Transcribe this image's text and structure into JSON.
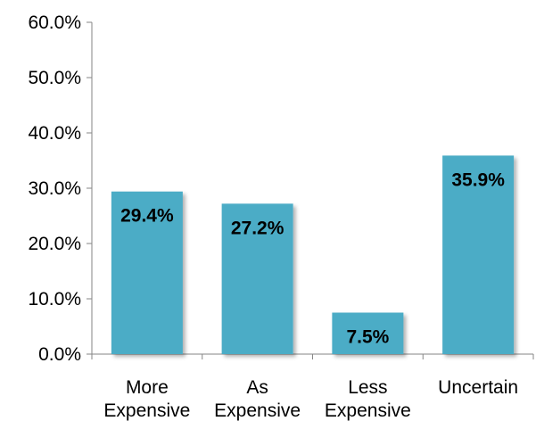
{
  "chart_data": {
    "type": "bar",
    "categories": [
      "More Expensive",
      "As Expensive",
      "Less Expensive",
      "Uncertain"
    ],
    "category_label_lines": [
      [
        "More",
        "Expensive"
      ],
      [
        "As",
        "Expensive"
      ],
      [
        "Less",
        "Expensive"
      ],
      [
        "Uncertain"
      ]
    ],
    "values": [
      29.4,
      27.2,
      7.5,
      35.9
    ],
    "data_labels": [
      "29.4%",
      "27.2%",
      "7.5%",
      "35.9%"
    ],
    "ylim": [
      0,
      60
    ],
    "y_ticks": [
      0,
      10,
      20,
      30,
      40,
      50,
      60
    ],
    "y_tick_labels": [
      "0.0%",
      "10.0%",
      "20.0%",
      "30.0%",
      "40.0%",
      "50.0%",
      "60.0%"
    ],
    "title": "",
    "xlabel": "",
    "ylabel": "",
    "grid": false,
    "legend": "none",
    "colors": {
      "bar": "#4bacc6",
      "axis": "#868686",
      "text": "#000000"
    }
  }
}
